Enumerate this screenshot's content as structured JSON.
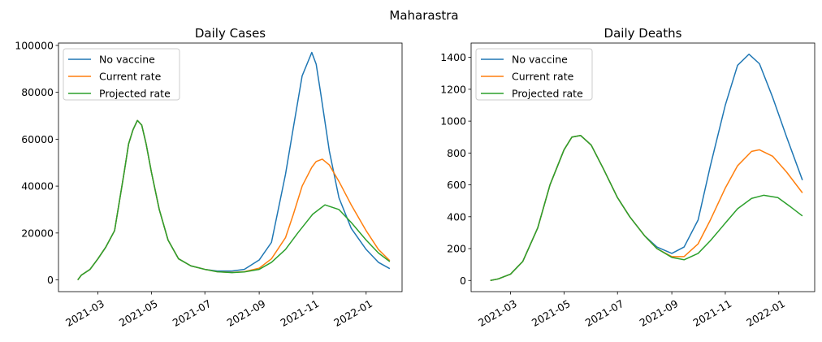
{
  "figure": {
    "suptitle": "Maharastra"
  },
  "colors": {
    "no_vaccine": "#1f77b4",
    "current_rate": "#ff7f0e",
    "projected_rate": "#2ca02c"
  },
  "chart_data": [
    {
      "type": "line",
      "title": "Daily Cases",
      "xlabel": "",
      "ylabel": "",
      "xlim": [
        "2021-01-15",
        "2022-02-11"
      ],
      "ylim": [
        -5000,
        101000
      ],
      "x_ticks": [
        "2021-03-01",
        "2021-05-01",
        "2021-07-01",
        "2021-09-01",
        "2021-11-01",
        "2022-01-01"
      ],
      "x_tick_labels": [
        "2021-03",
        "2021-05",
        "2021-07",
        "2021-09",
        "2021-11",
        "2022-01"
      ],
      "y_ticks": [
        0,
        20000,
        40000,
        60000,
        80000,
        100000
      ],
      "y_tick_labels": [
        "0",
        "20000",
        "40000",
        "60000",
        "80000",
        "100000"
      ],
      "grid": false,
      "legend": "top-left",
      "series": [
        {
          "name": "No vaccine",
          "x": [
            "2021-02-06",
            "2021-02-10",
            "2021-02-20",
            "2021-03-01",
            "2021-03-10",
            "2021-03-20",
            "2021-03-31",
            "2021-04-05",
            "2021-04-10",
            "2021-04-15",
            "2021-04-20",
            "2021-04-25",
            "2021-05-01",
            "2021-05-10",
            "2021-05-20",
            "2021-06-01",
            "2021-06-15",
            "2021-07-01",
            "2021-07-15",
            "2021-08-01",
            "2021-08-15",
            "2021-09-01",
            "2021-09-15",
            "2021-10-01",
            "2021-10-10",
            "2021-10-20",
            "2021-10-31",
            "2021-11-05",
            "2021-11-10",
            "2021-11-20",
            "2021-12-01",
            "2021-12-15",
            "2022-01-01",
            "2022-01-15",
            "2022-01-28"
          ],
          "y": [
            0,
            2000,
            4500,
            9000,
            14000,
            21000,
            46000,
            58000,
            64000,
            68000,
            66000,
            58000,
            46000,
            30000,
            17000,
            9000,
            6000,
            4500,
            3800,
            3800,
            4500,
            8500,
            16000,
            45000,
            65000,
            87000,
            97000,
            92000,
            80000,
            55000,
            35000,
            22000,
            13000,
            7500,
            4800
          ]
        },
        {
          "name": "Current rate",
          "x": [
            "2021-02-06",
            "2021-02-10",
            "2021-02-20",
            "2021-03-01",
            "2021-03-10",
            "2021-03-20",
            "2021-03-31",
            "2021-04-05",
            "2021-04-10",
            "2021-04-15",
            "2021-04-20",
            "2021-04-25",
            "2021-05-01",
            "2021-05-10",
            "2021-05-20",
            "2021-06-01",
            "2021-06-15",
            "2021-07-01",
            "2021-07-15",
            "2021-08-01",
            "2021-08-15",
            "2021-09-01",
            "2021-09-15",
            "2021-10-01",
            "2021-10-10",
            "2021-10-20",
            "2021-10-31",
            "2021-11-05",
            "2021-11-12",
            "2021-11-20",
            "2021-12-01",
            "2021-12-15",
            "2022-01-01",
            "2022-01-15",
            "2022-01-28"
          ],
          "y": [
            0,
            2000,
            4500,
            9000,
            14000,
            21000,
            46000,
            58000,
            64000,
            68000,
            66000,
            58000,
            46000,
            30000,
            17000,
            9000,
            6000,
            4500,
            3500,
            3200,
            3500,
            5000,
            9000,
            18000,
            28000,
            40000,
            48000,
            50500,
            51500,
            49000,
            42000,
            32000,
            21000,
            13000,
            8200
          ]
        },
        {
          "name": "Projected rate",
          "x": [
            "2021-02-06",
            "2021-02-10",
            "2021-02-20",
            "2021-03-01",
            "2021-03-10",
            "2021-03-20",
            "2021-03-31",
            "2021-04-05",
            "2021-04-10",
            "2021-04-15",
            "2021-04-20",
            "2021-04-25",
            "2021-05-01",
            "2021-05-10",
            "2021-05-20",
            "2021-06-01",
            "2021-06-15",
            "2021-07-01",
            "2021-07-15",
            "2021-08-01",
            "2021-08-15",
            "2021-09-01",
            "2021-09-15",
            "2021-10-01",
            "2021-10-15",
            "2021-11-01",
            "2021-11-15",
            "2021-12-01",
            "2021-12-15",
            "2022-01-01",
            "2022-01-15",
            "2022-01-28"
          ],
          "y": [
            0,
            2000,
            4500,
            9000,
            14000,
            21000,
            46000,
            58000,
            64000,
            68000,
            66000,
            58000,
            46000,
            30000,
            17000,
            9000,
            6000,
            4500,
            3500,
            3100,
            3400,
            4500,
            7500,
            13000,
            20000,
            28000,
            32000,
            30000,
            24500,
            17000,
            11500,
            7800
          ]
        }
      ]
    },
    {
      "type": "line",
      "title": "Daily Deaths",
      "xlabel": "",
      "ylabel": "",
      "xlim": [
        "2021-01-15",
        "2022-02-11"
      ],
      "ylim": [
        -70,
        1490
      ],
      "x_ticks": [
        "2021-03-01",
        "2021-05-01",
        "2021-07-01",
        "2021-09-01",
        "2021-11-01",
        "2022-01-01"
      ],
      "x_tick_labels": [
        "2021-03",
        "2021-05",
        "2021-07",
        "2021-09",
        "2021-11",
        "2022-01"
      ],
      "y_ticks": [
        0,
        200,
        400,
        600,
        800,
        1000,
        1200,
        1400
      ],
      "y_tick_labels": [
        "0",
        "200",
        "400",
        "600",
        "800",
        "1000",
        "1200",
        "1400"
      ],
      "grid": false,
      "legend": "top-left",
      "series": [
        {
          "name": "No vaccine",
          "x": [
            "2021-02-06",
            "2021-02-15",
            "2021-03-01",
            "2021-03-15",
            "2021-04-01",
            "2021-04-15",
            "2021-05-01",
            "2021-05-10",
            "2021-05-20",
            "2021-06-01",
            "2021-06-15",
            "2021-07-01",
            "2021-07-15",
            "2021-08-01",
            "2021-08-15",
            "2021-09-01",
            "2021-09-15",
            "2021-10-01",
            "2021-10-15",
            "2021-11-01",
            "2021-11-15",
            "2021-11-28",
            "2021-12-10",
            "2021-12-25",
            "2022-01-10",
            "2022-01-28"
          ],
          "y": [
            0,
            10,
            40,
            120,
            330,
            600,
            820,
            900,
            910,
            850,
            700,
            520,
            400,
            280,
            210,
            170,
            210,
            380,
            720,
            1100,
            1350,
            1420,
            1360,
            1150,
            900,
            630
          ]
        },
        {
          "name": "Current rate",
          "x": [
            "2021-02-06",
            "2021-02-15",
            "2021-03-01",
            "2021-03-15",
            "2021-04-01",
            "2021-04-15",
            "2021-05-01",
            "2021-05-10",
            "2021-05-20",
            "2021-06-01",
            "2021-06-15",
            "2021-07-01",
            "2021-07-15",
            "2021-08-01",
            "2021-08-15",
            "2021-09-01",
            "2021-09-15",
            "2021-10-01",
            "2021-10-15",
            "2021-11-01",
            "2021-11-15",
            "2021-12-01",
            "2021-12-10",
            "2021-12-25",
            "2022-01-10",
            "2022-01-28"
          ],
          "y": [
            0,
            10,
            40,
            120,
            330,
            600,
            820,
            900,
            910,
            850,
            700,
            520,
            400,
            280,
            200,
            150,
            150,
            230,
            380,
            580,
            720,
            810,
            820,
            780,
            680,
            550
          ]
        },
        {
          "name": "Projected rate",
          "x": [
            "2021-02-06",
            "2021-02-15",
            "2021-03-01",
            "2021-03-15",
            "2021-04-01",
            "2021-04-15",
            "2021-05-01",
            "2021-05-10",
            "2021-05-20",
            "2021-06-01",
            "2021-06-15",
            "2021-07-01",
            "2021-07-15",
            "2021-08-01",
            "2021-08-15",
            "2021-09-01",
            "2021-09-15",
            "2021-10-01",
            "2021-10-15",
            "2021-11-01",
            "2021-11-15",
            "2021-12-01",
            "2021-12-15",
            "2021-12-31",
            "2022-01-15",
            "2022-01-28"
          ],
          "y": [
            0,
            10,
            40,
            120,
            330,
            600,
            820,
            900,
            910,
            850,
            700,
            520,
            400,
            280,
            200,
            145,
            130,
            170,
            250,
            360,
            450,
            515,
            535,
            520,
            460,
            405
          ]
        }
      ]
    }
  ]
}
